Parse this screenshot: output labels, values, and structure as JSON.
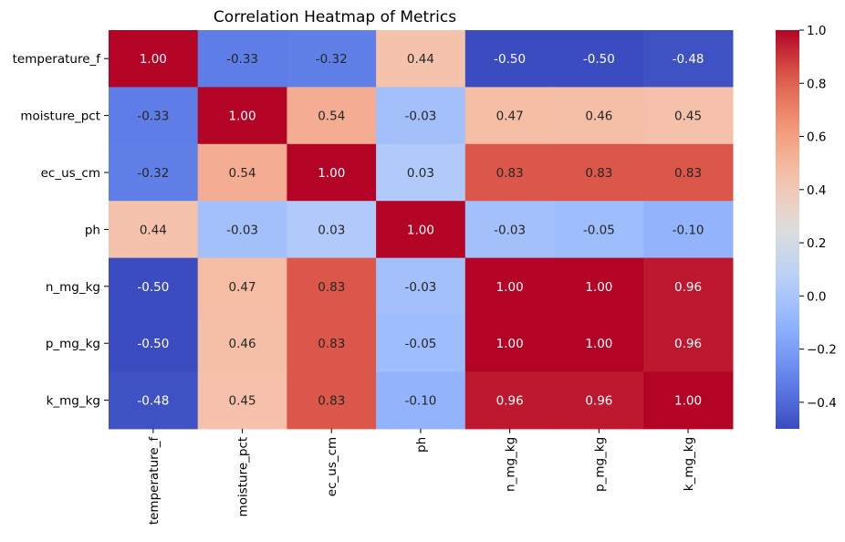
{
  "chart_data": {
    "type": "heatmap",
    "title": "Correlation Heatmap of Metrics",
    "xlabel": "",
    "ylabel": "",
    "row_labels": [
      "temperature_f",
      "moisture_pct",
      "ec_us_cm",
      "ph",
      "n_mg_kg",
      "p_mg_kg",
      "k_mg_kg"
    ],
    "col_labels": [
      "temperature_f",
      "moisture_pct",
      "ec_us_cm",
      "ph",
      "n_mg_kg",
      "p_mg_kg",
      "k_mg_kg"
    ],
    "values": [
      [
        1.0,
        -0.33,
        -0.32,
        0.44,
        -0.5,
        -0.5,
        -0.48
      ],
      [
        -0.33,
        1.0,
        0.54,
        -0.03,
        0.47,
        0.46,
        0.45
      ],
      [
        -0.32,
        0.54,
        1.0,
        0.03,
        0.83,
        0.83,
        0.83
      ],
      [
        0.44,
        -0.03,
        0.03,
        1.0,
        -0.03,
        -0.05,
        -0.1
      ],
      [
        -0.5,
        0.47,
        0.83,
        -0.03,
        1.0,
        1.0,
        0.96
      ],
      [
        -0.5,
        0.46,
        0.83,
        -0.05,
        1.0,
        1.0,
        0.96
      ],
      [
        -0.48,
        0.45,
        0.83,
        -0.1,
        0.96,
        0.96,
        1.0
      ]
    ],
    "value_format": "2 decimals",
    "colormap": "coolwarm",
    "color_range": [
      -0.5,
      1.0
    ],
    "colorbar_ticks": [
      1.0,
      0.8,
      0.6,
      0.4,
      0.2,
      0.0,
      -0.2,
      -0.4
    ],
    "colorbar_tick_labels": [
      "1.0",
      "0.8",
      "0.6",
      "0.4",
      "0.2",
      "0.0",
      "−0.2",
      "−0.4"
    ],
    "x_tick_rotation": "vertical",
    "grid": false,
    "colorbar_position": "right"
  }
}
